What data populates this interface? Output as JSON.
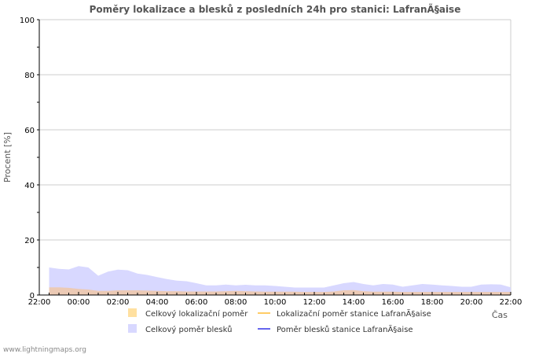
{
  "chart_data": {
    "type": "area",
    "title": "Poměry lokalizace a blesků z posledních 24h pro stanici: LafranÃ§aise",
    "ylabel": "Procent   [%]",
    "xlabel": "Čas",
    "ylim": [
      0,
      100
    ],
    "yticks": [
      "0",
      "20",
      "40",
      "60",
      "80",
      "100"
    ],
    "xticks": [
      "22:00",
      "00:00",
      "02:00",
      "04:00",
      "06:00",
      "08:00",
      "10:00",
      "12:00",
      "14:00",
      "16:00",
      "18:00",
      "20:00",
      "22:00"
    ],
    "x_hours": [
      0.5,
      1,
      1.5,
      2,
      2.5,
      3,
      3.5,
      4,
      4.5,
      5,
      5.5,
      6,
      6.5,
      7,
      7.5,
      8,
      8.5,
      9,
      9.5,
      10,
      10.5,
      11,
      11.5,
      12,
      12.5,
      13,
      13.5,
      14,
      14.5,
      15,
      15.5,
      16,
      16.5,
      17,
      17.5,
      18,
      18.5,
      19,
      19.5,
      20,
      20.5,
      21,
      21.5,
      22,
      22.5,
      23,
      23.5,
      24
    ],
    "series": [
      {
        "name": "Celkový poměr blesků",
        "color": "#d8d8ff",
        "values": [
          10,
          9.5,
          9.3,
          10.5,
          10,
          7,
          8.5,
          9.2,
          9,
          7.8,
          7.3,
          6.5,
          5.8,
          5.2,
          5,
          4.3,
          3.5,
          3.5,
          3.8,
          3.5,
          3.7,
          3.5,
          3.5,
          3.3,
          3,
          2.7,
          2.7,
          2.7,
          2.7,
          3.5,
          4.3,
          4.7,
          4,
          3.5,
          4,
          3.8,
          3,
          3.5,
          4,
          3.8,
          3.5,
          3.3,
          3,
          3,
          3.8,
          3.9,
          3.8,
          2.8
        ]
      },
      {
        "name": "Celkový lokalizační poměr",
        "color": "#f0c8a8",
        "values": [
          2.8,
          2.8,
          2.6,
          2.2,
          2,
          1.5,
          1.5,
          1.7,
          1.7,
          1.7,
          1.6,
          1.5,
          1.4,
          1.4,
          1.3,
          1.3,
          1.3,
          1.3,
          1.4,
          1.5,
          1.4,
          1.3,
          1.2,
          1.2,
          1.2,
          1.2,
          1.1,
          1.1,
          1.1,
          1.3,
          1.7,
          1.8,
          1.4,
          1.2,
          1.2,
          1.2,
          1.1,
          1.1,
          1.1,
          1.1,
          1.1,
          1.1,
          1.1,
          1.1,
          1.1,
          1.1,
          1.1,
          1.1
        ]
      }
    ],
    "legend": [
      {
        "label": "Celkový lokalizační poměr",
        "kind": "box",
        "color": "#ffe0a0"
      },
      {
        "label": "Lokalizační poměr stanice LafranÃ§aise",
        "kind": "line",
        "color": "#ffcc66"
      },
      {
        "label": "Celkový poměr blesků",
        "kind": "box",
        "color": "#d8d8ff"
      },
      {
        "label": "Poměr blesků stanice LafranÃ§aise",
        "kind": "line",
        "color": "#6666ee"
      }
    ]
  },
  "footer": "www.lightningmaps.org"
}
